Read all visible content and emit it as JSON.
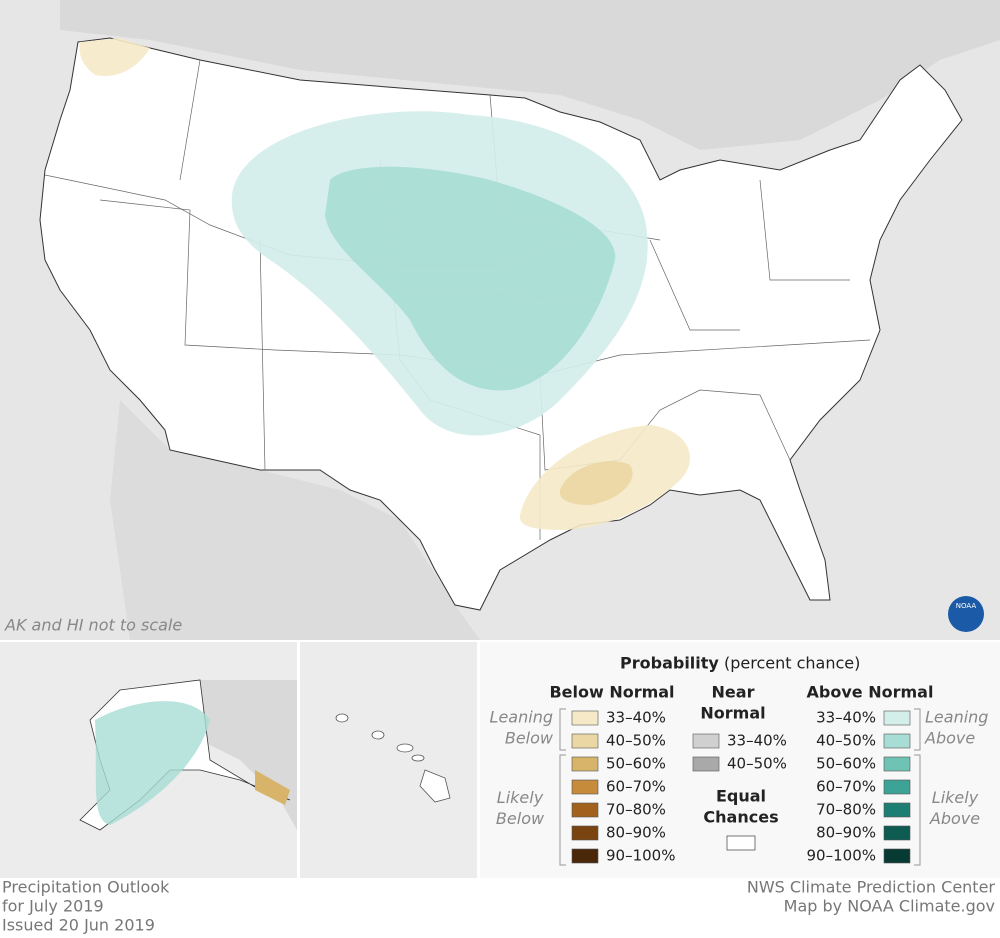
{
  "map": {
    "note": "AK and HI not to scale",
    "logo": "NOAA"
  },
  "legend": {
    "title": "Probability",
    "subtitle": "(percent chance)",
    "below": {
      "heading": [
        "Below Normal"
      ],
      "leaning": [
        "Leaning",
        "Below"
      ],
      "likely": [
        "Likely",
        "Below"
      ],
      "items": [
        {
          "label": "33–40%",
          "color": "#f5e9c8"
        },
        {
          "label": "40–50%",
          "color": "#ebd7a3"
        },
        {
          "label": "50–60%",
          "color": "#d8b46b"
        },
        {
          "label": "60–70%",
          "color": "#c68b3b"
        },
        {
          "label": "70–80%",
          "color": "#a2611c"
        },
        {
          "label": "80–90%",
          "color": "#7a4411"
        },
        {
          "label": "90–100%",
          "color": "#4a2708"
        }
      ]
    },
    "near": {
      "heading": [
        "Near",
        "Normal"
      ],
      "items": [
        {
          "label": "33–40%",
          "color": "#d0d0d0"
        },
        {
          "label": "40–50%",
          "color": "#a9a9a9"
        }
      ]
    },
    "equal": {
      "heading": [
        "Equal",
        "Chances"
      ],
      "color": "#ffffff"
    },
    "above": {
      "heading": [
        "Above Normal"
      ],
      "leaning": [
        "Leaning",
        "Above"
      ],
      "likely": [
        "Likely",
        "Above"
      ],
      "items": [
        {
          "label": "33–40%",
          "color": "#d4eeea"
        },
        {
          "label": "40–50%",
          "color": "#a7ddd4"
        },
        {
          "label": "50–60%",
          "color": "#6fc3b5"
        },
        {
          "label": "60–70%",
          "color": "#3da396"
        },
        {
          "label": "70–80%",
          "color": "#1d7f73"
        },
        {
          "label": "80–90%",
          "color": "#0e5b51"
        },
        {
          "label": "90–100%",
          "color": "#063a33"
        }
      ]
    }
  },
  "footer": {
    "left": [
      "Precipitation Outlook",
      "for July 2019",
      "Issued 20 Jun 2019"
    ],
    "right": [
      "NWS Climate Prediction Center",
      "Map by NOAA Climate.gov"
    ]
  }
}
